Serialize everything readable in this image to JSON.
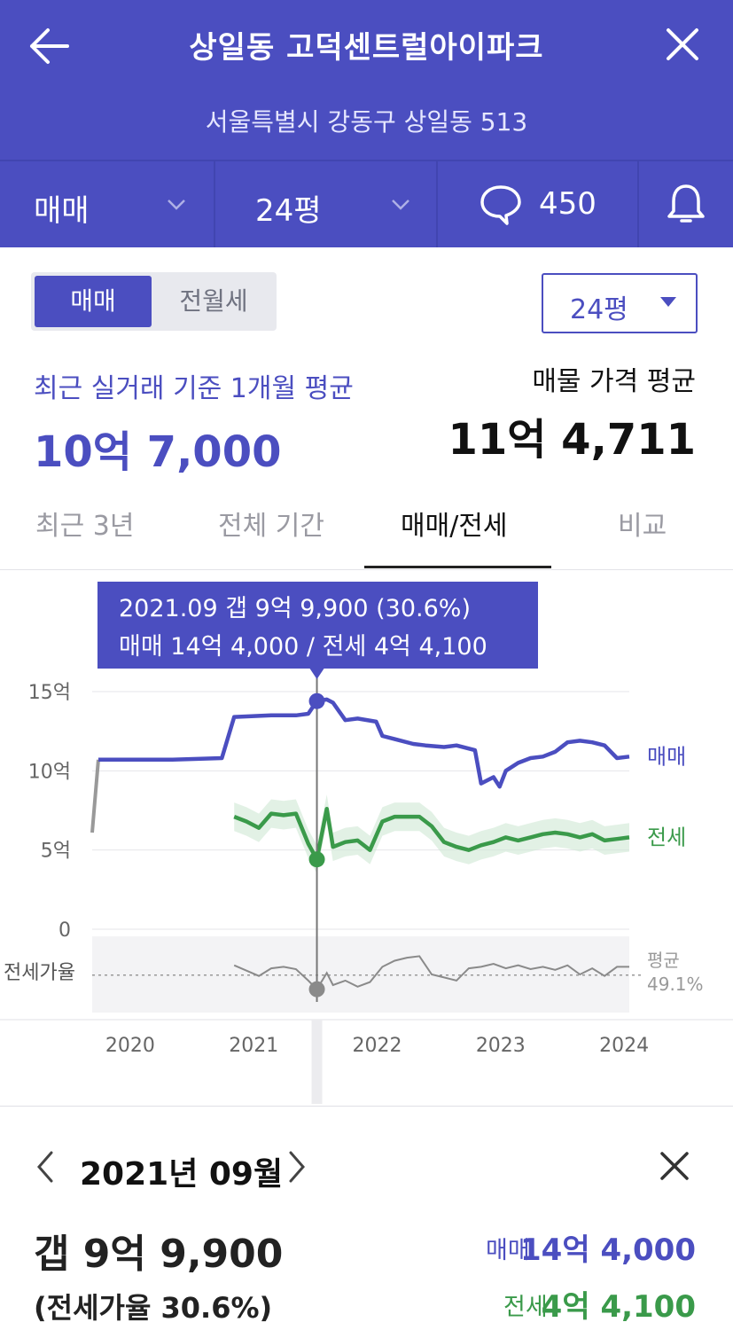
{
  "header": {
    "title": "상일동 고덕센트럴아이파크",
    "address": "서울특별시 강동구 상일동 513",
    "back_icon": "arrow-left-icon",
    "close_icon": "close-icon",
    "bg_color": "#4b4ec0"
  },
  "topbar": {
    "trade_type": "매매",
    "size": "24평",
    "comment_count": "450",
    "comment_icon": "speech-bubble-icon",
    "bell_icon": "bell-icon"
  },
  "toggle": {
    "active": "매매",
    "inactive": "전월세"
  },
  "size_select": {
    "value": "24평"
  },
  "summary": {
    "recent_label": "최근 실거래 기준 1개월 평균",
    "recent_value": "10억 7,000",
    "asking_label": "매물 가격 평균",
    "asking_value": "11억 4,711"
  },
  "period_tabs": [
    {
      "label": "최근 3년",
      "active": false
    },
    {
      "label": "전체 기간",
      "active": false
    },
    {
      "label": "매매/전세",
      "active": true
    },
    {
      "label": "비교",
      "active": false
    }
  ],
  "tooltip": {
    "line1": "2021.09  갭 9억 9,900 (30.6%)",
    "line2": "매매 14억 4,000 / 전세 4억 4,100"
  },
  "chart_data": {
    "type": "line",
    "y_tick_labels": [
      "15억",
      "10억",
      "5억",
      "0"
    ],
    "y_ticks": [
      15,
      10,
      5,
      0
    ],
    "ylim": [
      0,
      15
    ],
    "x_tick_labels": [
      "2020",
      "2021",
      "2022",
      "2023",
      "2024"
    ],
    "x_ticks": [
      2020,
      2021,
      2022,
      2023,
      2024
    ],
    "xlim": [
      2019.85,
      2024.2
    ],
    "ratio_axis_label": "전세가율",
    "ratio_avg_label": "평균",
    "ratio_avg_value": "49.1%",
    "ratio_range": [
      0,
      100
    ],
    "cursor_x": 2021.67,
    "series": [
      {
        "name": "매매",
        "color": "#4b4ec0",
        "x": [
          2019.85,
          2019.9,
          2020.0,
          2020.5,
          2020.9,
          2021.0,
          2021.3,
          2021.5,
          2021.6,
          2021.67,
          2021.75,
          2021.8,
          2021.9,
          2022.0,
          2022.15,
          2022.2,
          2022.3,
          2022.45,
          2022.55,
          2022.7,
          2022.8,
          2022.95,
          2023.0,
          2023.1,
          2023.15,
          2023.2,
          2023.3,
          2023.4,
          2023.5,
          2023.6,
          2023.7,
          2023.8,
          2023.9,
          2024.0,
          2024.1,
          2024.2
        ],
        "y": [
          6.1,
          10.7,
          10.7,
          10.7,
          10.8,
          13.4,
          13.5,
          13.5,
          13.6,
          14.4,
          14.5,
          14.3,
          13.2,
          13.3,
          13.1,
          12.2,
          12.0,
          11.7,
          11.6,
          11.5,
          11.6,
          11.3,
          9.2,
          9.6,
          9.0,
          10.0,
          10.5,
          10.8,
          10.9,
          11.2,
          11.8,
          11.9,
          11.8,
          11.6,
          10.8,
          10.9
        ]
      },
      {
        "name": "전세",
        "color": "#3a9a4a",
        "x": [
          2021.0,
          2021.1,
          2021.2,
          2021.3,
          2021.4,
          2021.5,
          2021.6,
          2021.67,
          2021.75,
          2021.8,
          2021.9,
          2022.0,
          2022.1,
          2022.2,
          2022.3,
          2022.4,
          2022.5,
          2022.6,
          2022.7,
          2022.8,
          2022.9,
          2023.0,
          2023.1,
          2023.2,
          2023.3,
          2023.4,
          2023.5,
          2023.6,
          2023.7,
          2023.8,
          2023.9,
          2024.0,
          2024.1,
          2024.2
        ],
        "y": [
          7.1,
          6.8,
          6.4,
          7.3,
          7.2,
          7.3,
          5.4,
          4.41,
          7.6,
          5.2,
          5.5,
          5.6,
          5.0,
          6.8,
          7.1,
          7.1,
          7.1,
          6.5,
          5.5,
          5.2,
          5.0,
          5.3,
          5.5,
          5.8,
          5.6,
          5.8,
          6.0,
          6.1,
          6.0,
          5.8,
          6.0,
          5.6,
          5.7,
          5.8
        ]
      },
      {
        "name": "전세가율",
        "color": "#8a8a8a",
        "x": [
          2021.0,
          2021.1,
          2021.2,
          2021.3,
          2021.4,
          2021.5,
          2021.6,
          2021.67,
          2021.75,
          2021.8,
          2021.9,
          2022.0,
          2022.1,
          2022.2,
          2022.3,
          2022.4,
          2022.5,
          2022.6,
          2022.7,
          2022.8,
          2022.9,
          2023.0,
          2023.1,
          2023.2,
          2023.3,
          2023.4,
          2023.5,
          2023.6,
          2023.7,
          2023.8,
          2023.9,
          2024.0,
          2024.1,
          2024.2
        ],
        "y": [
          62,
          55,
          48,
          58,
          60,
          57,
          42,
          30.6,
          52,
          36,
          42,
          34,
          40,
          60,
          68,
          72,
          74,
          50,
          46,
          42,
          58,
          60,
          64,
          58,
          62,
          57,
          60,
          56,
          62,
          50,
          58,
          48,
          60,
          60
        ]
      }
    ]
  },
  "detail": {
    "month": "2021년 09월",
    "prev_icon": "chevron-left-icon",
    "next_icon": "chevron-right-icon",
    "close_icon": "close-icon",
    "gap": "갭 9억 9,900",
    "ratio": "(전세가율 30.6%)",
    "sale_label": "매매",
    "sale_value": "14억 4,000",
    "jeonse_label": "전세",
    "jeonse_value": "4억 4,100",
    "sale_color": "#4b4ec0",
    "jeonse_color": "#3a9a4a"
  }
}
